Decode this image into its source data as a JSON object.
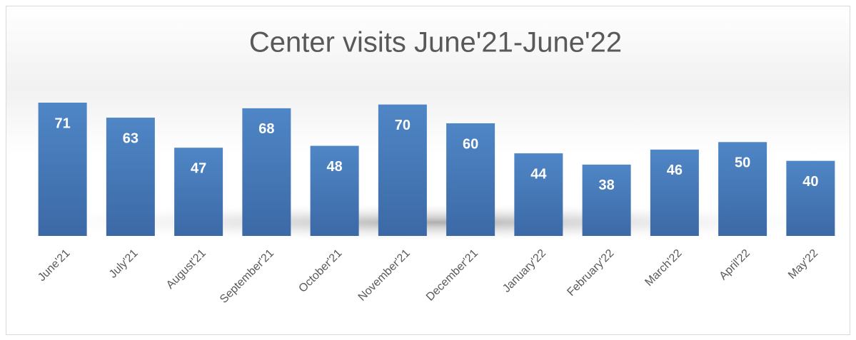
{
  "chart_data": {
    "type": "bar",
    "title": "Center visits June'21-June'22",
    "categories": [
      "June'21",
      "July'21",
      "August'21",
      "September'21",
      "October'21",
      "November'21",
      "December'21",
      "January'22",
      "February'22",
      "March'22",
      "April'22",
      "May'22"
    ],
    "values": [
      71,
      63,
      47,
      68,
      48,
      70,
      60,
      44,
      38,
      46,
      50,
      40
    ],
    "color": "#4a7ebb"
  }
}
